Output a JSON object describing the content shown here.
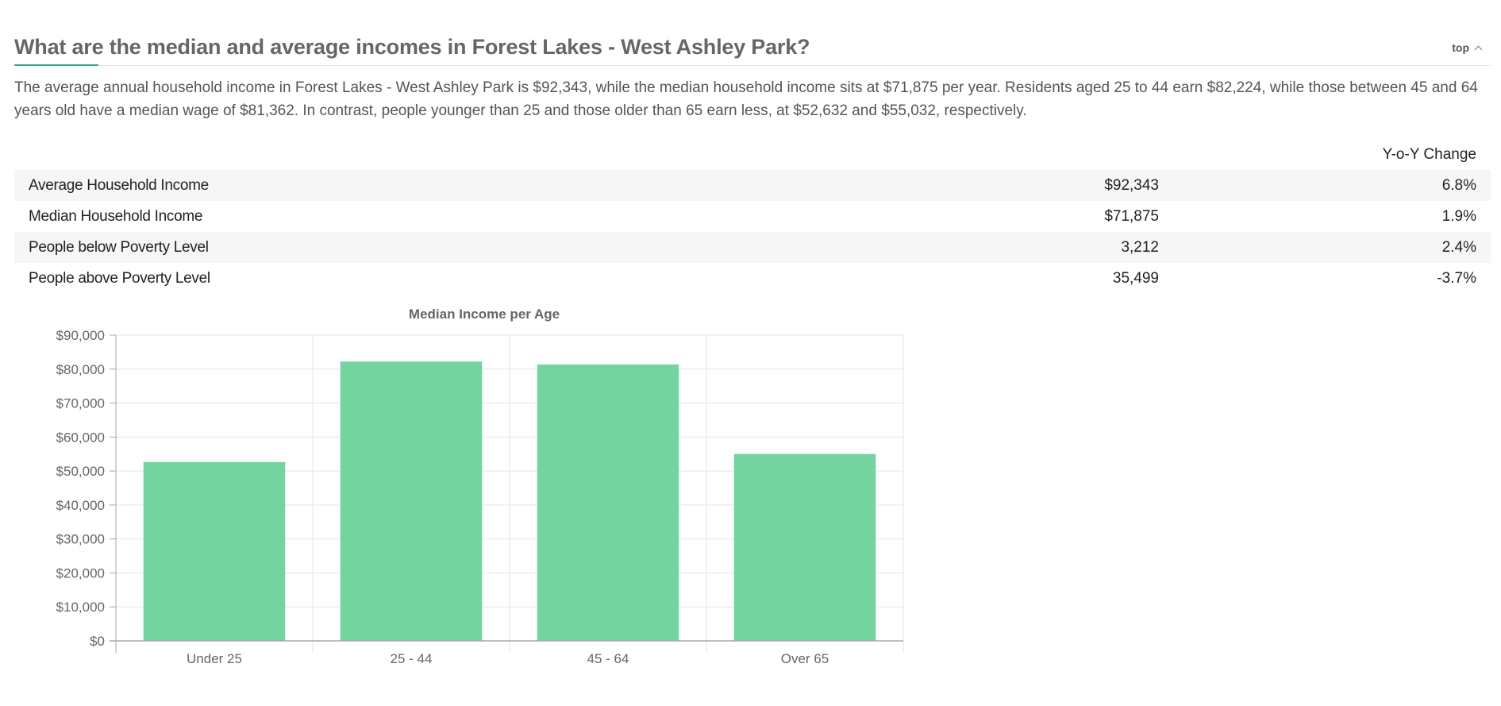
{
  "header": {
    "title": "What are the median and average incomes in Forest Lakes - West Ashley Park?",
    "top_link": "top"
  },
  "intro": "The average annual household income in Forest Lakes - West Ashley Park is $92,343, while the median household income sits at $71,875 per year. Residents aged 25 to 44 earn $82,224, while those between 45 and 64 years old have a median wage of $81,362. In contrast, people younger than 25 and those older than 65 earn less, at $52,632 and $55,032, respectively.",
  "table": {
    "change_header": "Y-o-Y Change",
    "rows": [
      {
        "label": "Average Household Income",
        "value": "$92,343",
        "change": "6.8%"
      },
      {
        "label": "Median Household Income",
        "value": "$71,875",
        "change": "1.9%"
      },
      {
        "label": "People below Poverty Level",
        "value": "3,212",
        "change": "2.4%"
      },
      {
        "label": "People above Poverty Level",
        "value": "35,499",
        "change": "-3.7%"
      }
    ]
  },
  "chart_data": {
    "type": "bar",
    "title": "Median Income per Age",
    "categories": [
      "Under 25",
      "25 - 44",
      "45 - 64",
      "Over 65"
    ],
    "values": [
      52632,
      82224,
      81362,
      55032
    ],
    "ylim": [
      0,
      90000
    ],
    "yticks": [
      0,
      10000,
      20000,
      30000,
      40000,
      50000,
      60000,
      70000,
      80000,
      90000
    ],
    "ytick_labels": [
      "$0",
      "$10,000",
      "$20,000",
      "$30,000",
      "$40,000",
      "$50,000",
      "$60,000",
      "$70,000",
      "$80,000",
      "$90,000"
    ],
    "xlabel": "",
    "ylabel": "",
    "grid": true,
    "colors": {
      "bar": "#74d4a0",
      "grid": "#e5e5e5",
      "axis": "#aaaaaa",
      "text": "#666666"
    }
  }
}
